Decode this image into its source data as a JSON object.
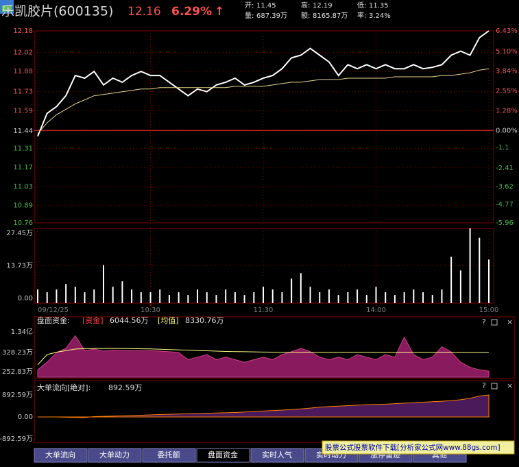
{
  "header": {
    "name": "乐凯胶片(600135)",
    "price": "12.16",
    "change": "6.29%",
    "arrow": "↑",
    "stats": [
      {
        "label": "开:",
        "value": "11.45"
      },
      {
        "label": "高:",
        "value": "12.19"
      },
      {
        "label": "低:",
        "value": "11.35"
      },
      {
        "label": "量:",
        "value": "687.39万"
      },
      {
        "label": "额:",
        "value": "8165.87万"
      },
      {
        "label": "率:",
        "value": "3.24%"
      }
    ]
  },
  "chart_data": [
    {
      "type": "line",
      "x": [
        0,
        5,
        10,
        15,
        20,
        25,
        30,
        35,
        40,
        45,
        50,
        55,
        60,
        65,
        70,
        75,
        80,
        85,
        90,
        95,
        100,
        105,
        110,
        115,
        120,
        125,
        130,
        135,
        140,
        145,
        150,
        155,
        160,
        165,
        170,
        175,
        180,
        185,
        190,
        195,
        200,
        205,
        210,
        215,
        220,
        225,
        230,
        235,
        240
      ],
      "xlim": [
        0,
        240
      ],
      "series": [
        {
          "color": "#ffffff",
          "values": [
            11.4,
            11.57,
            11.62,
            11.7,
            11.85,
            11.83,
            11.88,
            11.78,
            11.83,
            11.8,
            11.85,
            11.88,
            11.85,
            11.85,
            11.8,
            11.75,
            11.7,
            11.75,
            11.73,
            11.78,
            11.8,
            11.83,
            11.78,
            11.8,
            11.83,
            11.85,
            11.9,
            11.98,
            12.0,
            12.05,
            12.0,
            11.95,
            11.85,
            11.93,
            11.9,
            11.93,
            11.9,
            11.93,
            11.9,
            11.9,
            11.93,
            11.9,
            11.91,
            11.93,
            12.0,
            12.03,
            12.0,
            12.13,
            12.18
          ]
        },
        {
          "color": "#e8d890",
          "values": [
            11.42,
            11.5,
            11.56,
            11.6,
            11.64,
            11.67,
            11.7,
            11.71,
            11.72,
            11.73,
            11.74,
            11.75,
            11.75,
            11.76,
            11.76,
            11.76,
            11.76,
            11.76,
            11.76,
            11.76,
            11.76,
            11.77,
            11.77,
            11.77,
            11.77,
            11.78,
            11.79,
            11.8,
            11.8,
            11.81,
            11.82,
            11.82,
            11.82,
            11.83,
            11.83,
            11.83,
            11.83,
            11.83,
            11.84,
            11.84,
            11.84,
            11.84,
            11.84,
            11.85,
            11.85,
            11.86,
            11.87,
            11.89,
            11.9
          ]
        }
      ],
      "ylim": [
        10.76,
        12.18
      ],
      "yticks": [
        12.18,
        12.02,
        11.88,
        11.73,
        11.59,
        11.44,
        11.31,
        11.17,
        11.03,
        10.89,
        10.76
      ],
      "y2lim": [
        -5.96,
        6.43
      ],
      "y2ticks": [
        {
          "value": 6.43,
          "label": "6.43%"
        },
        {
          "value": 5.1,
          "label": "5.10%"
        },
        {
          "value": 3.84,
          "label": "3.84%"
        },
        {
          "value": 2.55,
          "label": "2.55%"
        },
        {
          "value": 1.28,
          "label": "1.28%"
        },
        {
          "value": 0,
          "label": "0.00%"
        },
        -1.1,
        -2.41,
        -3.62,
        -4.77,
        -5.96
      ],
      "grid": true
    },
    {
      "type": "bar",
      "x": [
        0,
        5,
        10,
        15,
        20,
        25,
        30,
        35,
        40,
        45,
        50,
        55,
        60,
        65,
        70,
        75,
        80,
        85,
        90,
        95,
        100,
        105,
        110,
        115,
        120,
        125,
        130,
        135,
        140,
        145,
        150,
        155,
        160,
        165,
        170,
        175,
        180,
        185,
        190,
        195,
        200,
        205,
        210,
        215,
        220,
        225,
        230,
        235,
        240
      ],
      "xlim": [
        0,
        240
      ],
      "xticks": [
        {
          "value": 0,
          "label": "09/12/25"
        },
        {
          "value": 60,
          "label": "10:30"
        },
        {
          "value": 120,
          "label": "11:30"
        },
        {
          "value": 180,
          "label": "14:00"
        },
        {
          "value": 240,
          "label": "15:00"
        }
      ],
      "values": [
        5,
        4,
        5,
        7,
        6,
        4,
        5,
        14,
        6,
        8,
        5,
        4,
        4,
        5,
        3,
        4,
        3,
        5,
        4,
        3,
        5,
        4,
        3,
        4,
        6,
        5,
        4,
        9,
        11,
        6,
        4,
        5,
        3,
        4,
        5,
        3,
        6,
        4,
        3,
        4,
        5,
        4,
        3,
        5,
        17,
        12,
        27.45,
        24,
        16
      ],
      "color": "#ffffff",
      "ylim": [
        0,
        27.45
      ],
      "yticks": [
        {
          "value": 27.45,
          "label": "27.45万"
        },
        {
          "value": 13.73,
          "label": "13.73万"
        },
        {
          "value": 0,
          "label": "0.00"
        }
      ],
      "grid": true
    },
    {
      "type": "area",
      "title": "盘面资金:",
      "x": [
        0,
        5,
        10,
        15,
        20,
        25,
        30,
        35,
        40,
        45,
        50,
        55,
        60,
        65,
        70,
        75,
        80,
        85,
        90,
        95,
        100,
        105,
        110,
        115,
        120,
        125,
        130,
        135,
        140,
        145,
        150,
        155,
        160,
        165,
        170,
        175,
        180,
        185,
        190,
        195,
        200,
        205,
        210,
        215,
        220,
        225,
        230,
        235,
        240
      ],
      "xlim": [
        0,
        240
      ],
      "series": [
        {
          "name": "[资金]",
          "readout": "6044.56万",
          "color": "#8a1a5e",
          "values": [
            260,
            290,
            330,
            3000,
            11000,
            1500,
            2500,
            1200,
            1800,
            1600,
            1500,
            1400,
            1500,
            1200,
            800,
            330,
            300,
            310,
            320,
            300,
            310,
            300,
            290,
            300,
            310,
            300,
            320,
            800,
            3000,
            900,
            310,
            300,
            310,
            300,
            320,
            310,
            300,
            320,
            310,
            10000,
            320,
            300,
            310,
            4000,
            600,
            290,
            270,
            260,
            255
          ]
        },
        {
          "name": "[均值]",
          "readout": "8330.76万",
          "color": "#ffff80",
          "values": [
            280,
            320,
            500,
            1500,
            2500,
            2800,
            2900,
            2900,
            2900,
            2900,
            2800,
            2700,
            2600,
            2400,
            2200,
            2000,
            1800,
            1600,
            1400,
            1200,
            1000,
            900,
            800,
            700,
            600,
            550,
            500,
            480,
            470,
            460,
            450,
            440,
            430,
            420,
            410,
            400,
            400,
            390,
            390,
            380,
            380,
            370,
            370,
            360,
            360,
            350,
            350,
            340,
            340
          ]
        }
      ],
      "ylim": [
        231,
        13400
      ],
      "yticks": [
        {
          "value": 13400,
          "label": "1.34亿"
        },
        {
          "value": 328.23,
          "label": "328.23万"
        },
        {
          "value": 252.83,
          "label": "252.83万"
        }
      ]
    },
    {
      "type": "area",
      "title": "大单流向[绝对]:",
      "readout": "892.59万",
      "x": [
        0,
        5,
        10,
        15,
        20,
        25,
        30,
        35,
        40,
        45,
        50,
        55,
        60,
        65,
        70,
        75,
        80,
        85,
        90,
        95,
        100,
        105,
        110,
        115,
        120,
        125,
        130,
        135,
        140,
        145,
        150,
        155,
        160,
        165,
        170,
        175,
        180,
        185,
        190,
        195,
        200,
        205,
        210,
        215,
        220,
        225,
        230,
        235,
        240
      ],
      "xlim": [
        0,
        240
      ],
      "series": [
        {
          "color": "#4a1a5a",
          "values": [
            0,
            0,
            0,
            -10,
            -20,
            -25,
            15,
            25,
            35,
            45,
            55,
            70,
            85,
            100,
            110,
            120,
            130,
            140,
            150,
            160,
            170,
            180,
            200,
            220,
            240,
            260,
            280,
            300,
            330,
            360,
            400,
            420,
            440,
            460,
            480,
            500,
            510,
            520,
            540,
            560,
            580,
            600,
            620,
            640,
            660,
            700,
            760,
            850,
            892.59
          ]
        }
      ],
      "ylim": [
        -892.59,
        892.59
      ],
      "yticks": [
        {
          "value": 892.59,
          "label": "892.59万"
        },
        {
          "value": 0,
          "label": "0.00"
        },
        {
          "value": -892.59,
          "label": "-892.59万"
        }
      ]
    }
  ],
  "panel_buttons": [
    "?",
    "×"
  ],
  "tabs": [
    "大单流向",
    "大单动力",
    "委托额",
    "盘面资金",
    "实时人气",
    "实时动力",
    "涨停留迹",
    "其他"
  ],
  "selected_tab": 3,
  "watermark": "股票公式股票软件下载[分析家公式网www.88gs.com]"
}
